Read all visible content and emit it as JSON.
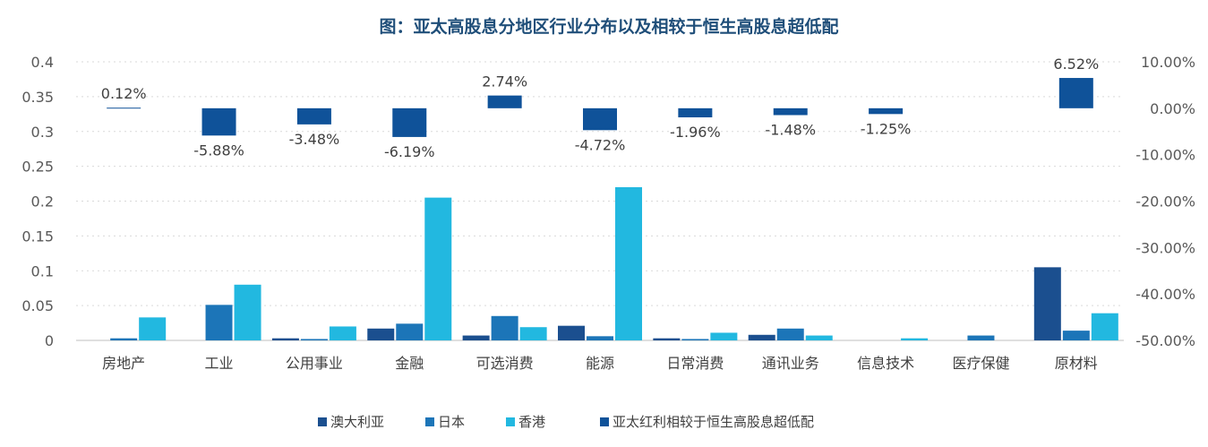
{
  "chart_data": {
    "type": "bar",
    "title": "图：亚太高股息分地区行业分布以及相较于恒生高股息超低配",
    "categories": [
      "房地产",
      "工业",
      "公用事业",
      "金融",
      "可选消费",
      "能源",
      "日常消费",
      "通讯业务",
      "信息技术",
      "医疗保健",
      "原材料"
    ],
    "series": [
      {
        "name": "澳大利亚",
        "color": "#1b4f8f",
        "axis": "left",
        "values": [
          0.0,
          0.0,
          0.003,
          0.017,
          0.007,
          0.021,
          0.003,
          0.008,
          0.0,
          0.0,
          0.105
        ]
      },
      {
        "name": "日本",
        "color": "#1c75b8",
        "axis": "left",
        "values": [
          0.003,
          0.051,
          0.002,
          0.024,
          0.035,
          0.006,
          0.002,
          0.017,
          0.0,
          0.007,
          0.014
        ]
      },
      {
        "name": "香港",
        "color": "#22b8e0",
        "axis": "left",
        "values": [
          0.033,
          0.08,
          0.02,
          0.205,
          0.019,
          0.22,
          0.011,
          0.007,
          0.003,
          0.0,
          0.039
        ]
      },
      {
        "name": "亚太红利相较于恒生高股息超低配",
        "color": "#0f5299",
        "axis": "right",
        "values": [
          0.12,
          -5.88,
          -3.48,
          -6.19,
          2.74,
          -4.72,
          -1.96,
          -1.48,
          -1.25,
          0.0,
          6.52
        ],
        "labels": [
          "0.12%",
          "-5.88%",
          "-3.48%",
          "-6.19%",
          "2.74%",
          "-4.72%",
          "-1.96%",
          "-1.48%",
          "-1.25%",
          "",
          "6.52%"
        ]
      }
    ],
    "left_axis": {
      "min": 0,
      "max": 0.4,
      "ticks": [
        "0.4",
        "0.35",
        "0.3",
        "0.25",
        "0.2",
        "0.15",
        "0.1",
        "0.05",
        "0"
      ],
      "tick_values": [
        0.4,
        0.35,
        0.3,
        0.25,
        0.2,
        0.15,
        0.1,
        0.05,
        0
      ]
    },
    "right_axis": {
      "min": -50,
      "max": 10,
      "ticks": [
        "10.00%",
        "0.00%",
        "-10.00%",
        "-20.00%",
        "-30.00%",
        "-40.00%",
        "-50.00%"
      ],
      "tick_values": [
        10,
        0,
        -10,
        -20,
        -30,
        -40,
        -50
      ]
    },
    "legend": [
      "澳大利亚",
      "日本",
      "香港",
      "亚太红利相较于恒生高股息超低配"
    ],
    "legend_position": "bottom",
    "grid": true
  }
}
